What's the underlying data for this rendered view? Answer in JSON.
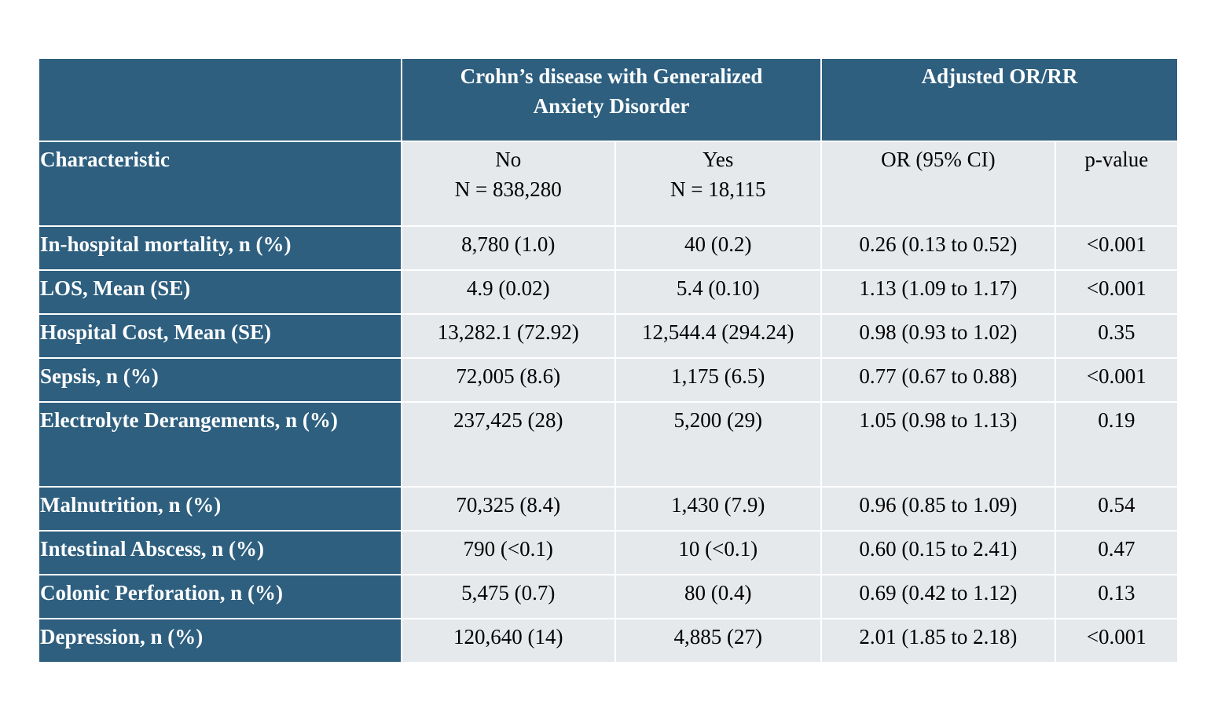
{
  "header": {
    "group1": "Crohn’s disease with Generalized Anxiety Disorder",
    "group2": "Adjusted OR/RR"
  },
  "subheader": {
    "characteristic": "Characteristic",
    "no_label": "No",
    "no_n": "N = 838,280",
    "yes_label": "Yes",
    "yes_n": "N = 18,115",
    "or_label": "OR (95% CI)",
    "p_label": "p-value"
  },
  "rows": [
    {
      "characteristic": "In-hospital mortality, n (%)",
      "no": "8,780 (1.0)",
      "yes": "40 (0.2)",
      "or": "0.26 (0.13 to 0.52)",
      "p": "<0.001"
    },
    {
      "characteristic": "LOS, Mean (SE)",
      "no": "4.9 (0.02)",
      "yes": "5.4 (0.10)",
      "or": "1.13 (1.09 to 1.17)",
      "p": "<0.001"
    },
    {
      "characteristic": "Hospital Cost, Mean (SE)",
      "no": "13,282.1 (72.92)",
      "yes": "12,544.4 (294.24)",
      "or": "0.98 (0.93 to 1.02)",
      "p": "0.35"
    },
    {
      "characteristic": "Sepsis, n (%)",
      "no": "72,005 (8.6)",
      "yes": "1,175 (6.5)",
      "or": "0.77 (0.67 to 0.88)",
      "p": "<0.001"
    },
    {
      "characteristic": "Electrolyte Derangements, n (%)",
      "no": "237,425 (28)",
      "yes": "5,200 (29)",
      "or": "1.05 (0.98 to 1.13)",
      "p": "0.19"
    },
    {
      "characteristic": "Malnutrition, n (%)",
      "no": "70,325 (8.4)",
      "yes": "1,430 (7.9)",
      "or": "0.96 (0.85 to 1.09)",
      "p": "0.54"
    },
    {
      "characteristic": "Intestinal Abscess, n (%)",
      "no": "790 (<0.1)",
      "yes": "10 (<0.1)",
      "or": "0.60 (0.15 to 2.41)",
      "p": "0.47"
    },
    {
      "characteristic": "Colonic Perforation, n (%)",
      "no": "5,475 (0.7)",
      "yes": "80 (0.4)",
      "or": "0.69 (0.42 to 1.12)",
      "p": "0.13"
    },
    {
      "characteristic": "Depression, n (%)",
      "no": "120,640 (14)",
      "yes": "4,885 (27)",
      "or": "2.01 (1.85 to 2.18)",
      "p": "<0.001"
    }
  ],
  "colors": {
    "header_bg": "#2e5f7f",
    "cell_bg": "#e6e9ec"
  }
}
